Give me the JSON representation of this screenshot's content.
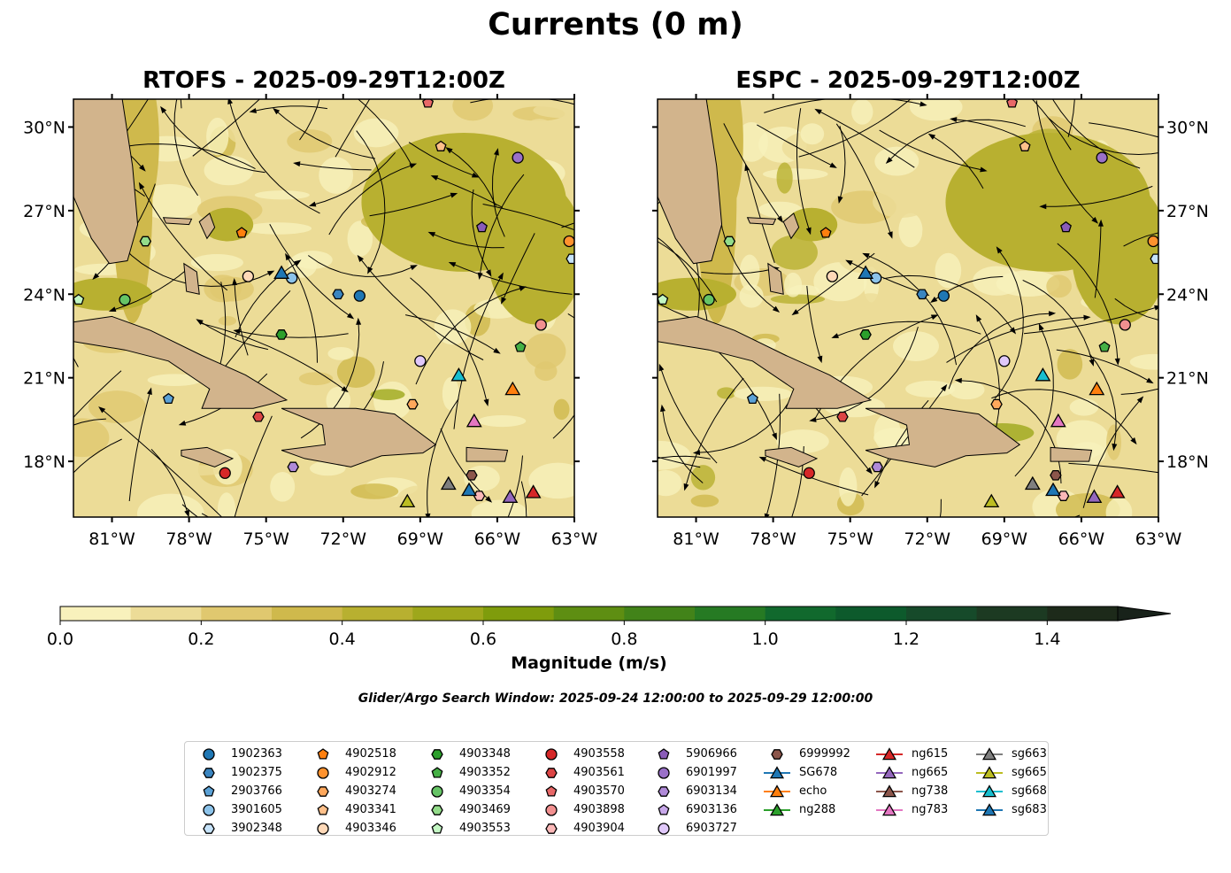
{
  "figure": {
    "title": "Currents (0 m)",
    "search_window": "Glider/Argo Search Window: 2025-09-24 12:00:00 to 2025-09-29 12:00:00"
  },
  "chart_data": [
    {
      "type": "map-contour",
      "title": "RTOFS - 2025-09-29T12:00Z",
      "xlim": [
        -82.5,
        -63
      ],
      "ylim": [
        16,
        31
      ],
      "xticks": [
        "81°W",
        "78°W",
        "75°W",
        "72°W",
        "69°W",
        "66°W",
        "63°W"
      ],
      "yticks": [
        "18°N",
        "21°N",
        "24°N",
        "27°N",
        "30°N"
      ]
    },
    {
      "type": "map-contour",
      "title": "ESPC - 2025-09-29T12:00Z",
      "xlim": [
        -82.5,
        -63
      ],
      "ylim": [
        16,
        31
      ],
      "xticks": [
        "81°W",
        "78°W",
        "75°W",
        "72°W",
        "69°W",
        "66°W",
        "63°W"
      ],
      "yticks": [
        "18°N",
        "21°N",
        "24°N",
        "27°N",
        "30°N"
      ]
    }
  ],
  "colorbar": {
    "label": "Magnitude (m/s)",
    "ticks": [
      "0.0",
      "0.2",
      "0.4",
      "0.6",
      "0.8",
      "1.0",
      "1.2",
      "1.4"
    ],
    "range": [
      0,
      1.5
    ],
    "extend": "max",
    "colors": [
      "#f8f1bc",
      "#ecdc97",
      "#e0c86f",
      "#cfb94c",
      "#b8b030",
      "#9ea71b",
      "#7f9c0c",
      "#5e8e12",
      "#428319",
      "#267a23",
      "#11692d",
      "#0d5a2c",
      "#164a2a",
      "#1c3a22",
      "#1d2a1a"
    ],
    "extend_color": "#18221a"
  },
  "platforms": [
    {
      "id": "1902363",
      "marker": "circle",
      "color": "#1f77b4",
      "lon": -71.36,
      "lat": 23.94
    },
    {
      "id": "1902375",
      "marker": "hexagon",
      "color": "#3a85c0",
      "lon": -72.2,
      "lat": 24.0
    },
    {
      "id": "2903766",
      "marker": "pentagon",
      "color": "#5ba1d6",
      "lon": -78.8,
      "lat": 20.24
    },
    {
      "id": "3901605",
      "marker": "circle",
      "color": "#8cc3ea",
      "lon": -74.0,
      "lat": 24.58
    },
    {
      "id": "3902348",
      "marker": "hexagon",
      "color": "#c6e3fa",
      "lon": -63.1,
      "lat": 25.27
    },
    {
      "id": "4902518",
      "marker": "pentagon",
      "color": "#ff7f0e",
      "lon": -75.95,
      "lat": 26.2
    },
    {
      "id": "4902912",
      "marker": "circle",
      "color": "#ff922e",
      "lon": -63.2,
      "lat": 25.9
    },
    {
      "id": "4903274",
      "marker": "hexagon",
      "color": "#ffa85c",
      "lon": -69.3,
      "lat": 20.05
    },
    {
      "id": "4903341",
      "marker": "pentagon",
      "color": "#ffc08a",
      "lon": -68.2,
      "lat": 29.3
    },
    {
      "id": "4903346",
      "marker": "circle",
      "color": "#ffd9b8",
      "lon": -75.7,
      "lat": 24.64
    },
    {
      "id": "4903348",
      "marker": "hexagon",
      "color": "#2ca02c",
      "lon": -74.4,
      "lat": 22.55
    },
    {
      "id": "4903352",
      "marker": "pentagon",
      "color": "#45b045",
      "lon": -65.1,
      "lat": 22.1
    },
    {
      "id": "4903354",
      "marker": "circle",
      "color": "#66c466",
      "lon": -80.5,
      "lat": 23.8
    },
    {
      "id": "4903469",
      "marker": "hexagon",
      "color": "#93dc8a",
      "lon": -79.7,
      "lat": 25.9
    },
    {
      "id": "4903553",
      "marker": "pentagon",
      "color": "#c3f7c3",
      "lon": -82.3,
      "lat": 23.8
    },
    {
      "id": "4903558",
      "marker": "circle",
      "color": "#d62728",
      "lon": -76.6,
      "lat": 17.58
    },
    {
      "id": "4903561",
      "marker": "hexagon",
      "color": "#dc4545",
      "lon": -75.3,
      "lat": 19.6
    },
    {
      "id": "4903570",
      "marker": "pentagon",
      "color": "#e86868",
      "lon": -68.7,
      "lat": 30.87
    },
    {
      "id": "4903898",
      "marker": "circle",
      "color": "#f29090",
      "lon": -64.3,
      "lat": 22.9
    },
    {
      "id": "4903904",
      "marker": "hexagon",
      "color": "#fbb8b8",
      "lon": -66.7,
      "lat": 16.76
    },
    {
      "id": "5906966",
      "marker": "pentagon",
      "color": "#8a5cb8",
      "lon": -66.6,
      "lat": 26.4
    },
    {
      "id": "6901997",
      "marker": "circle",
      "color": "#9a70c8",
      "lon": -65.2,
      "lat": 28.9
    },
    {
      "id": "6903134",
      "marker": "hexagon",
      "color": "#b08ad8",
      "lon": -73.95,
      "lat": 17.8
    },
    {
      "id": "6903136",
      "marker": "pentagon",
      "color": "#c8a8ea",
      "lon": null,
      "lat": null
    },
    {
      "id": "6903727",
      "marker": "circle",
      "color": "#e0c8fa",
      "lon": -69.0,
      "lat": 21.6
    },
    {
      "id": "6999992",
      "marker": "hexagon",
      "color": "#8c564b",
      "lon": -67.0,
      "lat": 17.5
    },
    {
      "id": "SG678",
      "marker": "triangle",
      "color": "#1f77b4",
      "lon": -74.4,
      "lat": 24.77
    },
    {
      "id": "echo",
      "marker": "triangle",
      "color": "#ff7f0e",
      "lon": -65.4,
      "lat": 20.6
    },
    {
      "id": "ng288",
      "marker": "triangle",
      "color": "#2ca02c",
      "lon": null,
      "lat": null
    },
    {
      "id": "ng615",
      "marker": "triangle",
      "color": "#d62728",
      "lon": -64.6,
      "lat": 16.9
    },
    {
      "id": "ng665",
      "marker": "triangle",
      "color": "#9467bd",
      "lon": -65.5,
      "lat": 16.73
    },
    {
      "id": "ng738",
      "marker": "triangle",
      "color": "#8c564b",
      "lon": null,
      "lat": null
    },
    {
      "id": "ng783",
      "marker": "triangle",
      "color": "#e377c2",
      "lon": -66.9,
      "lat": 19.45
    },
    {
      "id": "sg663",
      "marker": "triangle",
      "color": "#7f7f7f",
      "lon": -67.9,
      "lat": 17.2
    },
    {
      "id": "sg665",
      "marker": "triangle",
      "color": "#bcbd22",
      "lon": -69.5,
      "lat": 16.57
    },
    {
      "id": "sg668",
      "marker": "triangle",
      "color": "#17becf",
      "lon": -67.5,
      "lat": 21.1
    },
    {
      "id": "sg683",
      "marker": "triangle",
      "color": "#1f77b4",
      "lon": -67.1,
      "lat": 16.98
    }
  ]
}
